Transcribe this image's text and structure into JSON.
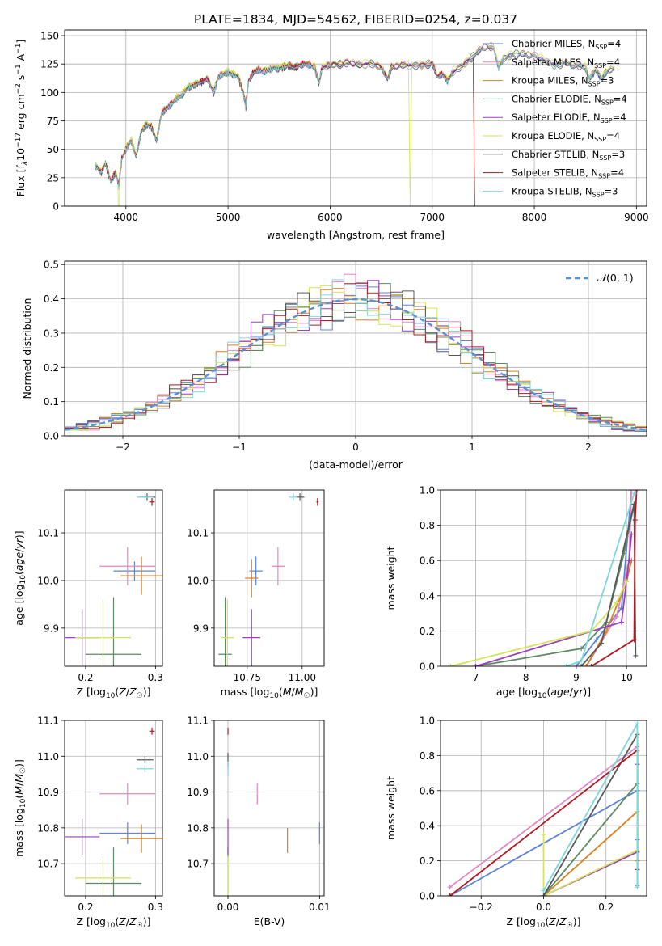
{
  "figure_title": "PLATE=1834, MJD=54562, FIBERID=0254, z=0.037",
  "legend_models": [
    {
      "base": "Chabrier MILES, N",
      "sub": "SSP",
      "tail": "=4",
      "color": "#5b84d6"
    },
    {
      "base": "Salpeter MILES, N",
      "sub": "SSP",
      "tail": "=4",
      "color": "#e586c0"
    },
    {
      "base": "Kroupa MILES, N",
      "sub": "SSP",
      "tail": "=3",
      "color": "#d9801e"
    },
    {
      "base": "Chabrier ELODIE, N",
      "sub": "SSP",
      "tail": "=4",
      "color": "#5d8a64"
    },
    {
      "base": "Salpeter ELODIE, N",
      "sub": "SSP",
      "tail": "=4",
      "color": "#9a3fbe"
    },
    {
      "base": "Kroupa ELODIE, N",
      "sub": "SSP",
      "tail": "=4",
      "color": "#d6e35a"
    },
    {
      "base": "Chabrier STELIB, N",
      "sub": "SSP",
      "tail": "=3",
      "color": "#585858"
    },
    {
      "base": "Salpeter STELIB, N",
      "sub": "SSP",
      "tail": "=4",
      "color": "#b01820"
    },
    {
      "base": "Kroupa STELIB, N",
      "sub": "SSP",
      "tail": "=3",
      "color": "#7fd6de"
    }
  ],
  "chart_data": [
    {
      "id": "spectrum",
      "type": "line",
      "title": "PLATE=1834, MJD=54562, FIBERID=0254, z=0.037",
      "xlabel": "wavelength [Angstrom, rest frame]",
      "ylabel": "Flux [fλ10^-17 erg cm^-2 s^-1 A^-1]",
      "ylabel_parts": {
        "a": "Flux [f",
        "b": "λ",
        "c": "10",
        "d": "−17",
        "e": " erg cm",
        "f": "−2",
        "g": " s",
        "h": "−1",
        "i": " A",
        "j": "−1",
        "k": "]"
      },
      "xlim": [
        3400,
        9100
      ],
      "ylim": [
        0,
        155
      ],
      "xticks": [
        4000,
        5000,
        6000,
        7000,
        8000,
        9000
      ],
      "yticks": [
        0,
        25,
        50,
        75,
        100,
        125,
        150
      ],
      "spectrum_points": [
        [
          3700,
          36
        ],
        [
          3760,
          30
        ],
        [
          3800,
          38
        ],
        [
          3850,
          22
        ],
        [
          3900,
          30
        ],
        [
          3930,
          18
        ],
        [
          3960,
          42
        ],
        [
          4000,
          50
        ],
        [
          4050,
          58
        ],
        [
          4100,
          44
        ],
        [
          4150,
          66
        ],
        [
          4200,
          72
        ],
        [
          4250,
          70
        ],
        [
          4300,
          58
        ],
        [
          4350,
          82
        ],
        [
          4400,
          86
        ],
        [
          4450,
          90
        ],
        [
          4500,
          95
        ],
        [
          4550,
          98
        ],
        [
          4600,
          104
        ],
        [
          4650,
          106
        ],
        [
          4700,
          108
        ],
        [
          4750,
          110
        ],
        [
          4800,
          112
        ],
        [
          4860,
          100
        ],
        [
          4900,
          113
        ],
        [
          4950,
          116
        ],
        [
          5000,
          118
        ],
        [
          5050,
          116
        ],
        [
          5100,
          114
        ],
        [
          5150,
          100
        ],
        [
          5175,
          88
        ],
        [
          5200,
          110
        ],
        [
          5250,
          118
        ],
        [
          5300,
          120
        ],
        [
          5350,
          118
        ],
        [
          5400,
          120
        ],
        [
          5450,
          122
        ],
        [
          5500,
          121
        ],
        [
          5550,
          123
        ],
        [
          5600,
          124
        ],
        [
          5650,
          122
        ],
        [
          5700,
          124
        ],
        [
          5750,
          125
        ],
        [
          5800,
          124
        ],
        [
          5850,
          122
        ],
        [
          5890,
          108
        ],
        [
          5920,
          122
        ],
        [
          6000,
          124
        ],
        [
          6100,
          125
        ],
        [
          6200,
          126
        ],
        [
          6300,
          124
        ],
        [
          6400,
          126
        ],
        [
          6500,
          122
        ],
        [
          6563,
          112
        ],
        [
          6600,
          122
        ],
        [
          6700,
          124
        ],
        [
          6800,
          124
        ],
        [
          6900,
          124
        ],
        [
          7000,
          126
        ],
        [
          7050,
          114
        ],
        [
          7100,
          116
        ],
        [
          7150,
          110
        ],
        [
          7200,
          118
        ],
        [
          7300,
          124
        ],
        [
          7400,
          132
        ],
        [
          7500,
          140
        ],
        [
          7600,
          140
        ],
        [
          7650,
          122
        ],
        [
          7700,
          130
        ],
        [
          7800,
          134
        ],
        [
          7900,
          134
        ],
        [
          8000,
          132
        ],
        [
          8100,
          128
        ],
        [
          8200,
          124
        ],
        [
          8300,
          126
        ],
        [
          8400,
          124
        ],
        [
          8500,
          122
        ],
        [
          8540,
          112
        ],
        [
          8600,
          120
        ],
        [
          8660,
          112
        ],
        [
          8700,
          118
        ],
        [
          8800,
          122
        ]
      ],
      "dropouts": [
        {
          "model": 5,
          "at": 3930
        },
        {
          "model": 5,
          "at": 6780
        },
        {
          "model": 7,
          "at": 7420
        }
      ]
    },
    {
      "id": "residuals",
      "type": "histogram",
      "xlabel": "(data-model)/error",
      "ylabel": "Normed distribution",
      "xlim": [
        -2.5,
        2.5
      ],
      "ylim": [
        0,
        0.51
      ],
      "xticks": [
        -2,
        -1,
        0,
        1,
        2
      ],
      "yticks": [
        0.0,
        0.1,
        0.2,
        0.3,
        0.4,
        0.5
      ],
      "reference_curve": {
        "label": "N(0,1)",
        "mean": 0,
        "sigma": 1
      },
      "bin_width": 0.1
    },
    {
      "id": "age-vs-Z",
      "type": "scatter",
      "xlabel": "Z [log10(Z/Z☉)]",
      "ylabel": "age [log10(age/yr)]",
      "xlim": [
        0.17,
        0.31
      ],
      "ylim": [
        9.82,
        10.19
      ],
      "xticks": [
        0.2,
        0.3
      ],
      "yticks": [
        9.9,
        10.0,
        10.1
      ],
      "points": [
        {
          "model": 0,
          "x": 0.27,
          "y": 10.02,
          "ex": 0.03,
          "ey": 0.02
        },
        {
          "model": 1,
          "x": 0.26,
          "y": 10.03,
          "ex": 0.04,
          "ey": 0.04
        },
        {
          "model": 2,
          "x": 0.28,
          "y": 10.01,
          "ex": 0.03,
          "ey": 0.04
        },
        {
          "model": 3,
          "x": 0.24,
          "y": 9.845,
          "ex": 0.04,
          "ey": 0.12
        },
        {
          "model": 4,
          "x": 0.195,
          "y": 9.88,
          "ex": 0.025,
          "ey": 0.06
        },
        {
          "model": 5,
          "x": 0.225,
          "y": 9.88,
          "ex": 0.04,
          "ey": 0.08
        },
        {
          "model": 6,
          "x": 0.288,
          "y": 10.175,
          "ex": 0.012,
          "ey": 0.008
        },
        {
          "model": 7,
          "x": 0.295,
          "y": 10.165,
          "ex": 0.004,
          "ey": 0.008
        },
        {
          "model": 8,
          "x": 0.285,
          "y": 10.175,
          "ex": 0.012,
          "ey": 0.008
        }
      ]
    },
    {
      "id": "age-vs-mass",
      "type": "scatter",
      "xlabel": "mass [log10(M/M☉)]",
      "ylabel": "",
      "xlim": [
        10.6,
        11.1
      ],
      "ylim": [
        9.82,
        10.19
      ],
      "xticks": [
        10.75,
        11.0
      ],
      "yticks": [
        9.9,
        10.0,
        10.1
      ],
      "points": [
        {
          "model": 0,
          "x": 10.79,
          "y": 10.02,
          "ex": 0.03,
          "ey": 0.03
        },
        {
          "model": 1,
          "x": 10.89,
          "y": 10.03,
          "ex": 0.03,
          "ey": 0.04
        },
        {
          "model": 2,
          "x": 10.77,
          "y": 10.005,
          "ex": 0.03,
          "ey": 0.04
        },
        {
          "model": 3,
          "x": 10.65,
          "y": 9.845,
          "ex": 0.03,
          "ey": 0.12
        },
        {
          "model": 4,
          "x": 10.77,
          "y": 9.88,
          "ex": 0.04,
          "ey": 0.06
        },
        {
          "model": 5,
          "x": 10.66,
          "y": 9.88,
          "ex": 0.03,
          "ey": 0.08
        },
        {
          "model": 6,
          "x": 10.99,
          "y": 10.175,
          "ex": 0.02,
          "ey": 0.008
        },
        {
          "model": 7,
          "x": 11.07,
          "y": 10.165,
          "ex": 0.005,
          "ey": 0.008
        },
        {
          "model": 8,
          "x": 10.96,
          "y": 10.175,
          "ex": 0.02,
          "ey": 0.008
        }
      ]
    },
    {
      "id": "weight-vs-age",
      "type": "line",
      "xlabel": "age [log10(age/yr)]",
      "ylabel": "mass weight",
      "xlim": [
        6.3,
        10.4
      ],
      "ylim": [
        0.0,
        1.0
      ],
      "xticks": [
        7,
        8,
        9,
        10
      ],
      "yticks": [
        0.0,
        0.2,
        0.4,
        0.6,
        0.8,
        1.0
      ],
      "series": [
        {
          "model": 0,
          "points": [
            [
              9.0,
              0.0
            ],
            [
              9.4,
              0.15
            ],
            [
              9.9,
              0.33
            ],
            [
              10.1,
              1.0
            ]
          ]
        },
        {
          "model": 1,
          "points": [
            [
              9.2,
              0.0
            ],
            [
              9.8,
              0.28
            ],
            [
              10.05,
              0.6
            ],
            [
              10.1,
              1.0
            ]
          ]
        },
        {
          "model": 2,
          "points": [
            [
              9.2,
              0.0
            ],
            [
              9.6,
              0.2
            ],
            [
              10.0,
              0.48
            ],
            [
              10.1,
              0.6
            ]
          ]
        },
        {
          "model": 3,
          "points": [
            [
              7.0,
              0.0
            ],
            [
              9.1,
              0.1
            ],
            [
              9.6,
              0.25
            ],
            [
              9.95,
              0.64
            ],
            [
              10.15,
              0.92
            ]
          ]
        },
        {
          "model": 4,
          "points": [
            [
              7.0,
              0.0
            ],
            [
              9.9,
              0.25
            ],
            [
              10.05,
              0.6
            ],
            [
              10.1,
              0.75
            ]
          ]
        },
        {
          "model": 5,
          "points": [
            [
              6.5,
              0.0
            ],
            [
              9.3,
              0.2
            ],
            [
              9.8,
              0.36
            ],
            [
              10.0,
              0.48
            ]
          ]
        },
        {
          "model": 6,
          "points": [
            [
              9.1,
              0.0
            ],
            [
              9.5,
              0.13
            ],
            [
              10.15,
              0.92
            ],
            [
              10.18,
              0.06
            ]
          ]
        },
        {
          "model": 7,
          "points": [
            [
              9.3,
              0.0
            ],
            [
              10.15,
              0.15
            ],
            [
              10.17,
              0.83
            ],
            [
              10.2,
              1.0
            ]
          ]
        },
        {
          "model": 8,
          "points": [
            [
              8.8,
              0.0
            ],
            [
              9.1,
              0.03
            ],
            [
              10.15,
              0.98
            ]
          ]
        }
      ]
    },
    {
      "id": "mass-vs-Z",
      "type": "scatter",
      "xlabel": "Z [log10(Z/Z☉)]",
      "ylabel": "mass [log10(M/M☉)]",
      "xlim": [
        0.17,
        0.31
      ],
      "ylim": [
        10.61,
        11.1
      ],
      "xticks": [
        0.2,
        0.3
      ],
      "yticks": [
        10.7,
        10.8,
        10.9,
        11.0,
        11.1
      ],
      "points": [
        {
          "model": 0,
          "x": 0.26,
          "y": 10.785,
          "ex": 0.04,
          "ey": 0.03
        },
        {
          "model": 1,
          "x": 0.26,
          "y": 10.895,
          "ex": 0.04,
          "ey": 0.03
        },
        {
          "model": 2,
          "x": 0.28,
          "y": 10.77,
          "ex": 0.03,
          "ey": 0.04
        },
        {
          "model": 3,
          "x": 0.24,
          "y": 10.645,
          "ex": 0.04,
          "ey": 0.1
        },
        {
          "model": 4,
          "x": 0.195,
          "y": 10.775,
          "ex": 0.025,
          "ey": 0.05
        },
        {
          "model": 5,
          "x": 0.225,
          "y": 10.66,
          "ex": 0.04,
          "ey": 0.06
        },
        {
          "model": 6,
          "x": 0.285,
          "y": 10.99,
          "ex": 0.012,
          "ey": 0.01
        },
        {
          "model": 7,
          "x": 0.295,
          "y": 11.07,
          "ex": 0.004,
          "ey": 0.01
        },
        {
          "model": 8,
          "x": 0.285,
          "y": 10.965,
          "ex": 0.012,
          "ey": 0.01
        }
      ]
    },
    {
      "id": "mass-vs-EBV",
      "type": "scatter",
      "xlabel": "E(B-V)",
      "ylabel": "",
      "xlim": [
        -0.0015,
        0.0105
      ],
      "ylim": [
        10.61,
        11.1
      ],
      "xticks": [
        0.0,
        0.01
      ],
      "yticks": [
        10.7,
        10.8,
        10.9,
        11.0,
        11.1
      ],
      "points": [
        {
          "model": 0,
          "x": 0.01,
          "y": 10.785,
          "ex": 0,
          "ey": 0.03
        },
        {
          "model": 1,
          "x": 0.0032,
          "y": 10.895,
          "ex": 0,
          "ey": 0.03
        },
        {
          "model": 2,
          "x": 0.0065,
          "y": 10.765,
          "ex": 0,
          "ey": 0.035
        },
        {
          "model": 3,
          "x": 0.0,
          "y": 10.645,
          "ex": 0,
          "ey": 0.1
        },
        {
          "model": 4,
          "x": 0.0,
          "y": 10.775,
          "ex": 0,
          "ey": 0.05
        },
        {
          "model": 5,
          "x": 0.0,
          "y": 10.66,
          "ex": 0,
          "ey": 0.06
        },
        {
          "model": 6,
          "x": 0.0,
          "y": 10.99,
          "ex": 0,
          "ey": 0.02
        },
        {
          "model": 7,
          "x": 0.0,
          "y": 11.07,
          "ex": 0,
          "ey": 0.01
        },
        {
          "model": 8,
          "x": 0.0,
          "y": 10.965,
          "ex": 0,
          "ey": 0.02
        }
      ]
    },
    {
      "id": "weight-vs-Z",
      "type": "line",
      "xlabel": "Z [log10(Z/Z☉)]",
      "ylabel": "mass weight",
      "xlim": [
        -0.33,
        0.33
      ],
      "ylim": [
        0.0,
        1.0
      ],
      "xticks": [
        -0.2,
        0.0,
        0.2
      ],
      "yticks": [
        0.0,
        0.2,
        0.4,
        0.6,
        0.8,
        1.0
      ],
      "series": [
        {
          "model": 0,
          "points": [
            [
              -0.3,
              0.0
            ],
            [
              0.3,
              0.6
            ],
            [
              0.3,
              0.32
            ]
          ]
        },
        {
          "model": 1,
          "points": [
            [
              -0.3,
              0.05
            ],
            [
              0.3,
              0.85
            ],
            [
              0.3,
              0.4
            ]
          ]
        },
        {
          "model": 2,
          "points": [
            [
              0.0,
              0.0
            ],
            [
              0.3,
              0.48
            ],
            [
              0.3,
              0.2
            ]
          ]
        },
        {
          "model": 3,
          "points": [
            [
              0.0,
              0.0
            ],
            [
              0.3,
              0.64
            ],
            [
              0.3,
              0.25
            ]
          ]
        },
        {
          "model": 4,
          "points": [
            [
              0.0,
              0.0
            ],
            [
              0.3,
              0.25
            ],
            [
              0.3,
              0.75
            ]
          ]
        },
        {
          "model": 5,
          "points": [
            [
              0.0,
              0.35
            ],
            [
              0.0,
              0.0
            ],
            [
              0.3,
              0.26
            ],
            [
              0.3,
              0.48
            ]
          ]
        },
        {
          "model": 6,
          "points": [
            [
              0.0,
              0.0
            ],
            [
              0.3,
              0.92
            ],
            [
              0.3,
              0.06
            ]
          ]
        },
        {
          "model": 7,
          "points": [
            [
              -0.3,
              0.0
            ],
            [
              0.3,
              0.83
            ],
            [
              0.3,
              0.15
            ]
          ]
        },
        {
          "model": 8,
          "points": [
            [
              0.0,
              0.03
            ],
            [
              0.3,
              0.98
            ],
            [
              0.3,
              0.05
            ]
          ]
        }
      ]
    }
  ]
}
